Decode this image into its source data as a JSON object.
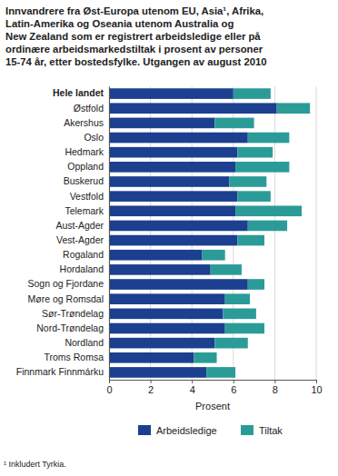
{
  "chart_data": {
    "type": "bar",
    "orientation": "horizontal",
    "stacked": true,
    "grid": true,
    "legend": "bottom",
    "title": "Innvandrere fra Øst-Europa utenom EU, Asia¹, Afrika,\nLatin-Amerika og Oseania utenom Australia og\nNew Zealand som er registrert arbeidsledige eller på\nordinære arbeidsmarkedstiltak i prosent av personer\n15-74 år, etter bostedsfylke. Utgangen av august 2010",
    "x_label": "Prosent",
    "annotations": [
      "¹ Inkludert Tyrkia."
    ],
    "categories": [
      "Hele landet",
      "Østfold",
      "Akershus",
      "Oslo",
      "Hedmark",
      "Oppland",
      "Buskerud",
      "Vestfold",
      "Telemark",
      "Aust-Agder",
      "Vest-Agder",
      "Rogaland",
      "Hordaland",
      "Sogn og Fjordane",
      "Møre og Romsdal",
      "Sør-Trøndelag",
      "Nord-Trøndelag",
      "Nordland",
      "Troms Romsa",
      "Finnmark Finnmárku"
    ],
    "series": [
      {
        "name": "Arbeidsledige",
        "color": "#1c3f8f",
        "values": [
          6.0,
          8.1,
          5.1,
          6.7,
          6.2,
          6.1,
          5.8,
          6.2,
          6.1,
          6.7,
          6.2,
          4.5,
          4.9,
          6.7,
          5.6,
          5.5,
          5.6,
          5.1,
          4.1,
          4.7
        ]
      },
      {
        "name": "Tiltak",
        "color": "#2b9b98",
        "values": [
          1.8,
          1.6,
          1.9,
          2.0,
          1.7,
          2.6,
          1.8,
          1.6,
          3.2,
          1.9,
          1.3,
          1.1,
          1.5,
          0.8,
          1.2,
          1.6,
          1.9,
          1.6,
          1.1,
          1.4
        ]
      }
    ],
    "xlim": [
      0,
      10
    ],
    "xticks": [
      0,
      2,
      4,
      6,
      8,
      10
    ]
  }
}
